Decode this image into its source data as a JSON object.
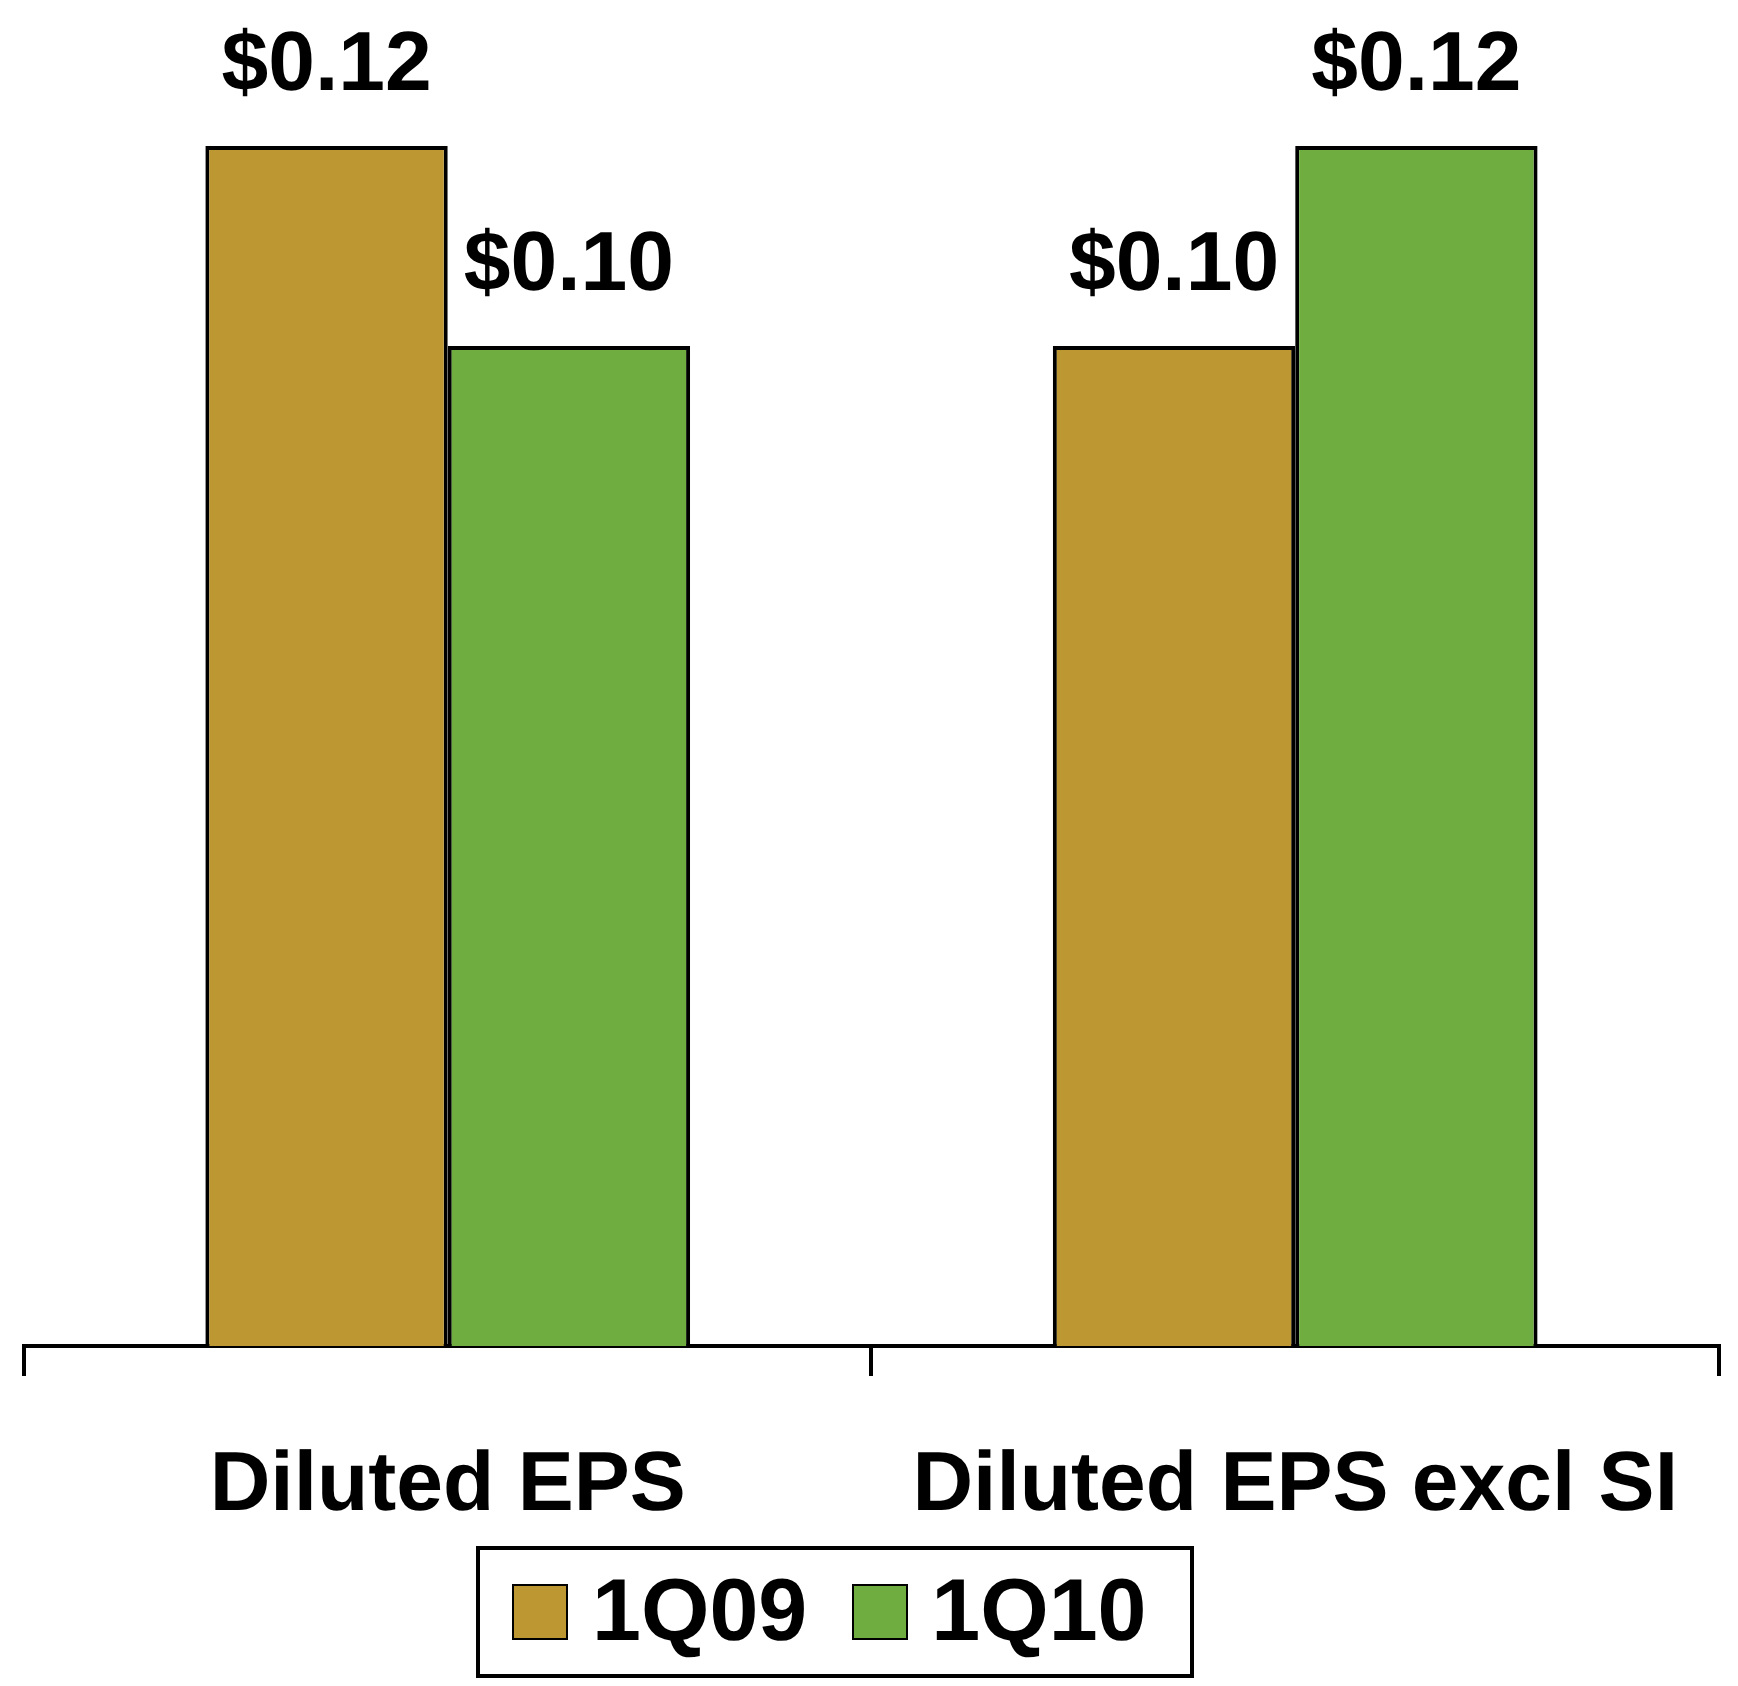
{
  "chart_data": {
    "type": "bar",
    "categories": [
      "Diluted EPS",
      "Diluted EPS excl SI"
    ],
    "series": [
      {
        "name": "1Q09",
        "color": "#bd9832",
        "values": [
          0.12,
          0.1
        ],
        "value_labels": [
          "$0.12",
          "$0.10"
        ]
      },
      {
        "name": "1Q10",
        "color": "#70ad41",
        "values": [
          0.1,
          0.12
        ],
        "value_labels": [
          "$0.10",
          "$0.12"
        ]
      }
    ],
    "ylim": [
      0,
      0.12
    ],
    "legend": "bottom",
    "tick_labels": "x"
  }
}
